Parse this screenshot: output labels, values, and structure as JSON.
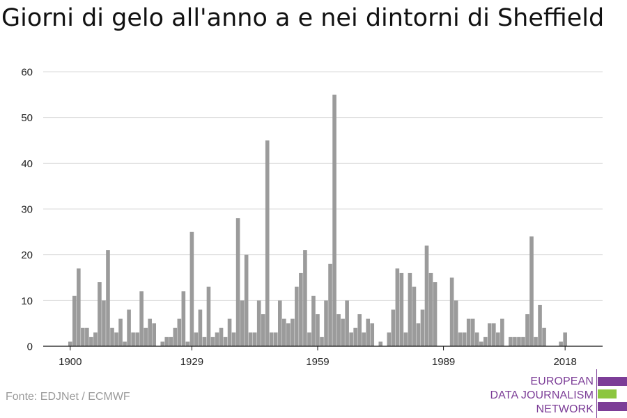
{
  "title": "Giorni di gelo all'anno a e nei dintorni di Sheffield",
  "source": "Fonte: EDJNet / ECMWF",
  "logo": {
    "line1": "EUROPEAN",
    "line2": "DATA JOURNALISM",
    "line3": "NETWORK",
    "color_primary": "#7c3d97",
    "color_accent": "#8cc63f"
  },
  "colors": {
    "bar": "#9b9b9b",
    "grid": "#d9d9d9",
    "axis": "#111111",
    "tick_text": "#222222"
  },
  "chart_data": {
    "type": "bar",
    "title": "Giorni di gelo all'anno a e nei dintorni di Sheffield",
    "xlabel": "",
    "ylabel": "",
    "ylim": [
      0,
      60
    ],
    "yticks": [
      0,
      10,
      20,
      30,
      40,
      50,
      60
    ],
    "xticks": [
      1900,
      1929,
      1959,
      1989,
      2018
    ],
    "grid": true,
    "x": [
      1900,
      1901,
      1902,
      1903,
      1904,
      1905,
      1906,
      1907,
      1908,
      1909,
      1910,
      1911,
      1912,
      1913,
      1914,
      1915,
      1916,
      1917,
      1918,
      1919,
      1920,
      1921,
      1922,
      1923,
      1924,
      1925,
      1926,
      1927,
      1928,
      1929,
      1930,
      1931,
      1932,
      1933,
      1934,
      1935,
      1936,
      1937,
      1938,
      1939,
      1940,
      1941,
      1942,
      1943,
      1944,
      1945,
      1946,
      1947,
      1948,
      1949,
      1950,
      1951,
      1952,
      1953,
      1954,
      1955,
      1956,
      1957,
      1958,
      1959,
      1960,
      1961,
      1962,
      1963,
      1964,
      1965,
      1966,
      1967,
      1968,
      1969,
      1970,
      1971,
      1972,
      1973,
      1974,
      1975,
      1976,
      1977,
      1978,
      1979,
      1980,
      1981,
      1982,
      1983,
      1984,
      1985,
      1986,
      1987,
      1988,
      1989,
      1990,
      1991,
      1992,
      1993,
      1994,
      1995,
      1996,
      1997,
      1998,
      1999,
      2000,
      2001,
      2002,
      2003,
      2004,
      2005,
      2006,
      2007,
      2008,
      2009,
      2010,
      2011,
      2012,
      2013,
      2014,
      2015,
      2016,
      2017,
      2018,
      2019
    ],
    "values": [
      1,
      11,
      17,
      4,
      4,
      2,
      3,
      14,
      10,
      21,
      4,
      3,
      6,
      1,
      8,
      3,
      3,
      12,
      4,
      6,
      5,
      0,
      1,
      2,
      2,
      4,
      6,
      12,
      1,
      25,
      3,
      8,
      2,
      13,
      2,
      3,
      4,
      2,
      6,
      3,
      28,
      10,
      20,
      3,
      3,
      10,
      7,
      45,
      3,
      3,
      10,
      6,
      5,
      6,
      13,
      16,
      21,
      3,
      11,
      7,
      2,
      10,
      18,
      55,
      7,
      6,
      10,
      3,
      4,
      7,
      3,
      6,
      5,
      0,
      1,
      0,
      3,
      8,
      17,
      16,
      3,
      16,
      13,
      5,
      8,
      22,
      16,
      14,
      0,
      0,
      0,
      15,
      10,
      3,
      3,
      6,
      6,
      3,
      1,
      2,
      5,
      5,
      3,
      6,
      0,
      2,
      2,
      2,
      2,
      7,
      24,
      2,
      9,
      4,
      0,
      0,
      0,
      1,
      3,
      0
    ]
  }
}
